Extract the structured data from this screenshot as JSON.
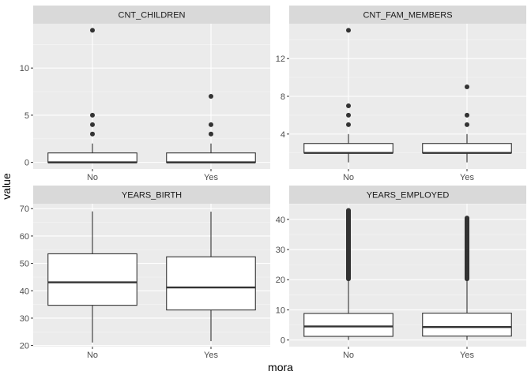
{
  "chart_data": {
    "type": "boxplot",
    "xlabel": "mora",
    "ylabel": "value",
    "categories": [
      "No",
      "Yes"
    ],
    "panels": [
      {
        "title": "CNT_CHILDREN",
        "ylim": [
          -0.7,
          14.7
        ],
        "yticks": [
          0,
          5,
          10
        ],
        "boxes": [
          {
            "category": "No",
            "min": 0,
            "q1": 0,
            "median": 0,
            "q3": 1,
            "max": 2,
            "outliers": [
              3,
              4,
              5,
              14
            ]
          },
          {
            "category": "Yes",
            "min": 0,
            "q1": 0,
            "median": 0,
            "q3": 1,
            "max": 2,
            "outliers": [
              3,
              4,
              7
            ]
          }
        ]
      },
      {
        "title": "CNT_FAM_MEMBERS",
        "ylim": [
          0.3,
          15.7
        ],
        "yticks": [
          4,
          8,
          12
        ],
        "boxes": [
          {
            "category": "No",
            "min": 1,
            "q1": 2,
            "median": 2,
            "q3": 3,
            "max": 4,
            "outliers": [
              5,
              6,
              7,
              15
            ]
          },
          {
            "category": "Yes",
            "min": 1,
            "q1": 2,
            "median": 2,
            "q3": 3,
            "max": 4,
            "outliers": [
              5,
              6,
              9
            ]
          }
        ]
      },
      {
        "title": "YEARS_BIRTH",
        "ylim": [
          19.6,
          71.8
        ],
        "yticks": [
          20,
          30,
          40,
          50,
          60,
          70
        ],
        "boxes": [
          {
            "category": "No",
            "min": 21.1,
            "q1": 34.7,
            "median": 43.1,
            "q3": 53.5,
            "max": 69.0,
            "outliers": []
          },
          {
            "category": "Yes",
            "min": 21.6,
            "q1": 33.0,
            "median": 41.2,
            "q3": 52.4,
            "max": 68.9,
            "outliers": []
          }
        ]
      },
      {
        "title": "YEARS_EMPLOYED",
        "ylim": [
          -2.2,
          45.2
        ],
        "yticks": [
          0,
          10,
          20,
          30,
          40
        ],
        "boxes": [
          {
            "category": "No",
            "min": 0,
            "q1": 1.2,
            "median": 4.5,
            "q3": 8.8,
            "max": 20.2,
            "outlier_range": [
              20.3,
              43.0
            ]
          },
          {
            "category": "Yes",
            "min": 0,
            "q1": 1.3,
            "median": 4.3,
            "q3": 8.9,
            "max": 20.2,
            "outlier_range": [
              20.3,
              40.5
            ]
          }
        ]
      }
    ]
  }
}
